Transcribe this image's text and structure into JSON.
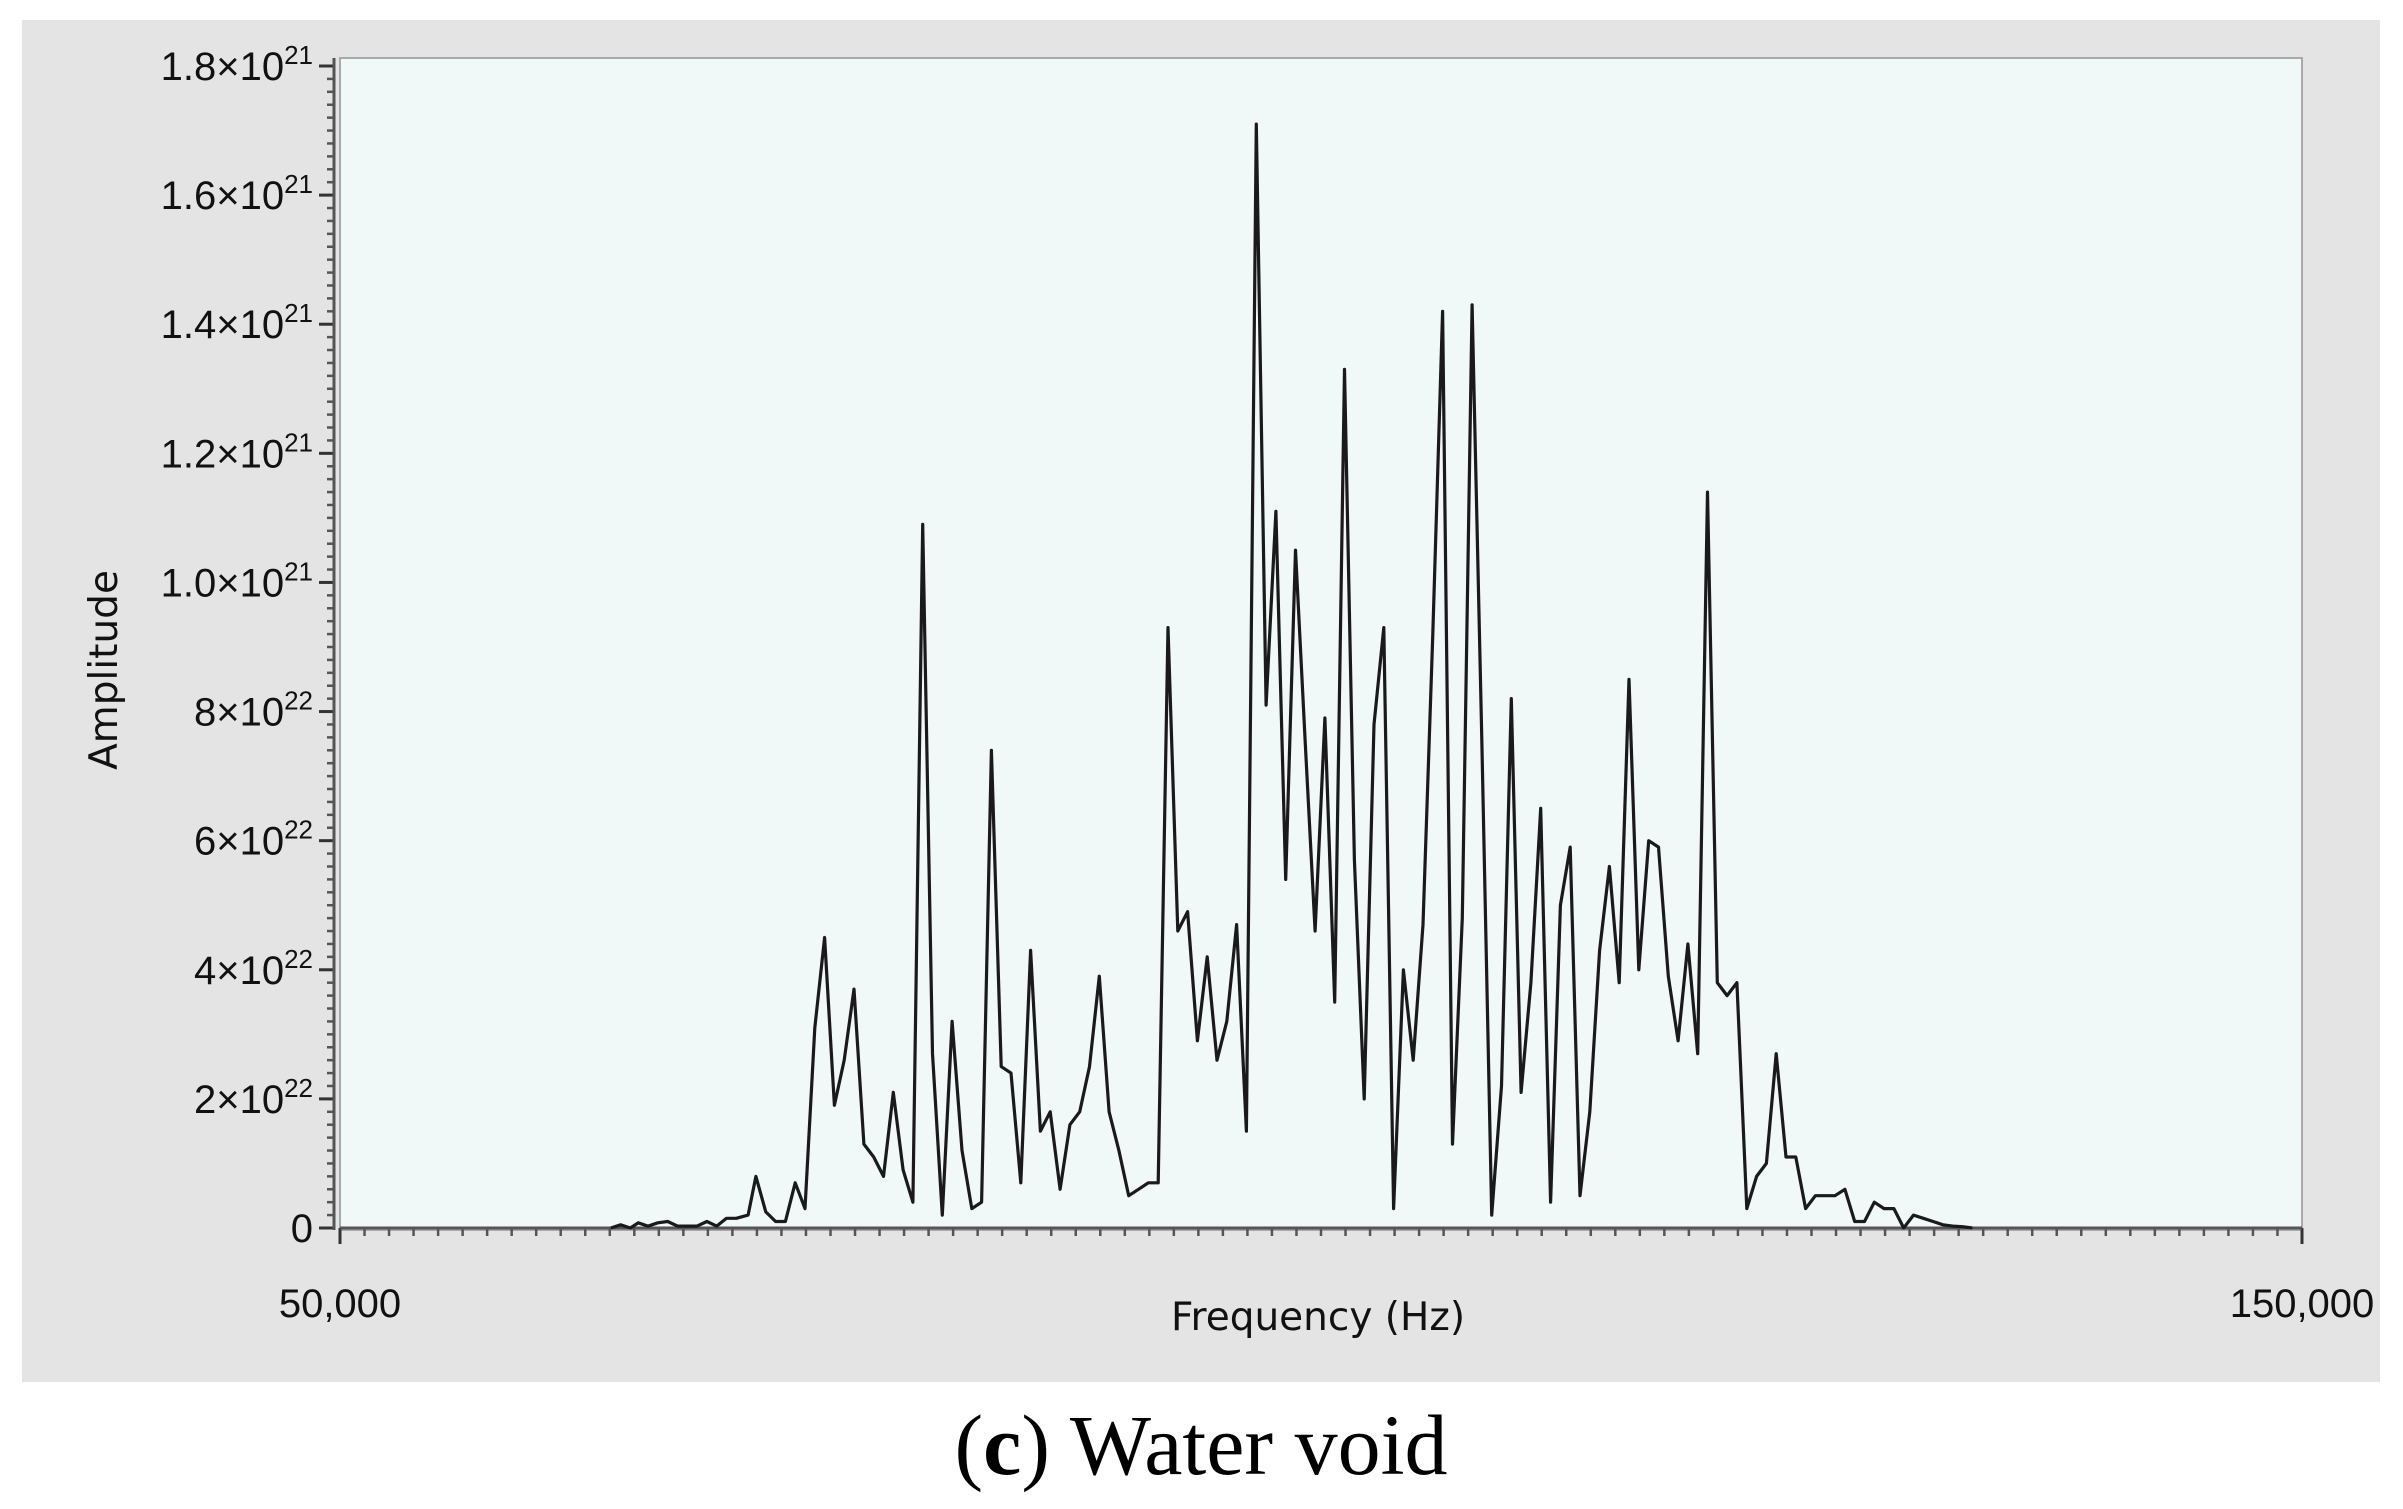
{
  "chart_data": {
    "type": "line",
    "xlabel": "Frequency (Hz)",
    "ylabel": "Amplitude",
    "xlim": [
      50000,
      150000
    ],
    "ylim": [
      0,
      1.8
    ],
    "x_tick_labels": [
      {
        "value": 50000,
        "label": "50,000"
      },
      {
        "value": 150000,
        "label": "150,000"
      }
    ],
    "y_tick_labels": [
      {
        "value": 0,
        "mantissa": "0",
        "exponent": ""
      },
      {
        "value": 0.2,
        "mantissa": "2×10",
        "exponent": "22"
      },
      {
        "value": 0.4,
        "mantissa": "4×10",
        "exponent": "22"
      },
      {
        "value": 0.6,
        "mantissa": "6×10",
        "exponent": "22"
      },
      {
        "value": 0.8,
        "mantissa": "8×10",
        "exponent": "22"
      },
      {
        "value": 1.0,
        "mantissa": "1.0×10",
        "exponent": "21"
      },
      {
        "value": 1.2,
        "mantissa": "1.2×10",
        "exponent": "21"
      },
      {
        "value": 1.4,
        "mantissa": "1.4×10",
        "exponent": "21"
      },
      {
        "value": 1.6,
        "mantissa": "1.6×10",
        "exponent": "21"
      },
      {
        "value": 1.8,
        "mantissa": "1.8×10",
        "exponent": "21"
      }
    ],
    "series": [
      {
        "color": "#1a1a1a",
        "x": [
          63800,
          64300,
          64800,
          65200,
          65700,
          66200,
          66700,
          67200,
          67700,
          68200,
          68700,
          69200,
          69700,
          70200,
          70800,
          71200,
          71700,
          72200,
          72700,
          73200,
          73700,
          74200,
          74700,
          75200,
          75700,
          76200,
          76700,
          77200,
          77700,
          78200,
          78700,
          79200,
          79700,
          80200,
          80700,
          81200,
          81700,
          82200,
          82700,
          83200,
          83700,
          84200,
          84700,
          85200,
          85700,
          86200,
          86700,
          87200,
          87700,
          88200,
          88700,
          89200,
          89700,
          90200,
          90700,
          91200,
          91700,
          92200,
          92700,
          93200,
          93700,
          94200,
          94700,
          95200,
          95700,
          96200,
          96700,
          97200,
          97700,
          98200,
          98700,
          99200,
          99700,
          100200,
          100700,
          101200,
          101700,
          102200,
          102700,
          103200,
          103700,
          104200,
          104700,
          105200,
          105700,
          106200,
          106700,
          107200,
          107700,
          108200,
          108700,
          109200,
          109700,
          110200,
          110700,
          111200,
          111700,
          112200,
          112700,
          113200,
          113700,
          114200,
          114700,
          115200,
          115700,
          116200,
          116700,
          117200,
          117700,
          118200,
          118700,
          119200,
          119700,
          120200,
          120700,
          121200,
          121700,
          122200,
          122700,
          123200,
          123700,
          124200,
          124700,
          125200,
          125700,
          126200,
          126700,
          127200,
          127700,
          128200,
          128700,
          129200,
          129700,
          130200,
          130700,
          131200,
          131700,
          132200,
          132700,
          133200
        ],
        "y": [
          0.0,
          0.005,
          0.0,
          0.008,
          0.003,
          0.008,
          0.01,
          0.003,
          0.003,
          0.003,
          0.01,
          0.003,
          0.015,
          0.015,
          0.02,
          0.08,
          0.025,
          0.01,
          0.01,
          0.07,
          0.03,
          0.31,
          0.45,
          0.19,
          0.26,
          0.37,
          0.13,
          0.11,
          0.08,
          0.21,
          0.09,
          0.04,
          1.09,
          0.27,
          0.02,
          0.32,
          0.12,
          0.03,
          0.04,
          0.74,
          0.25,
          0.24,
          0.07,
          0.43,
          0.15,
          0.18,
          0.06,
          0.16,
          0.18,
          0.25,
          0.39,
          0.18,
          0.12,
          0.05,
          0.06,
          0.07,
          0.07,
          0.93,
          0.46,
          0.49,
          0.29,
          0.42,
          0.26,
          0.32,
          0.47,
          0.15,
          1.71,
          0.81,
          1.11,
          0.54,
          1.05,
          0.75,
          0.46,
          0.79,
          0.35,
          1.33,
          0.57,
          0.2,
          0.78,
          0.93,
          0.03,
          0.4,
          0.26,
          0.47,
          0.92,
          1.42,
          0.13,
          0.48,
          1.43,
          0.75,
          0.02,
          0.22,
          0.82,
          0.21,
          0.38,
          0.65,
          0.04,
          0.5,
          0.59,
          0.05,
          0.18,
          0.43,
          0.56,
          0.38,
          0.85,
          0.4,
          0.6,
          0.59,
          0.39,
          0.29,
          0.44,
          0.27,
          1.14,
          0.38,
          0.36,
          0.38,
          0.03,
          0.08,
          0.1,
          0.27,
          0.11,
          0.11,
          0.03,
          0.05,
          0.05,
          0.05,
          0.06,
          0.01,
          0.01,
          0.04,
          0.03,
          0.03,
          0.0,
          0.02,
          0.015,
          0.01,
          0.005,
          0.003,
          0.002,
          0.0
        ]
      }
    ]
  },
  "caption": {
    "open_paren": "(",
    "letter": "c",
    "rest": ") Water void"
  }
}
